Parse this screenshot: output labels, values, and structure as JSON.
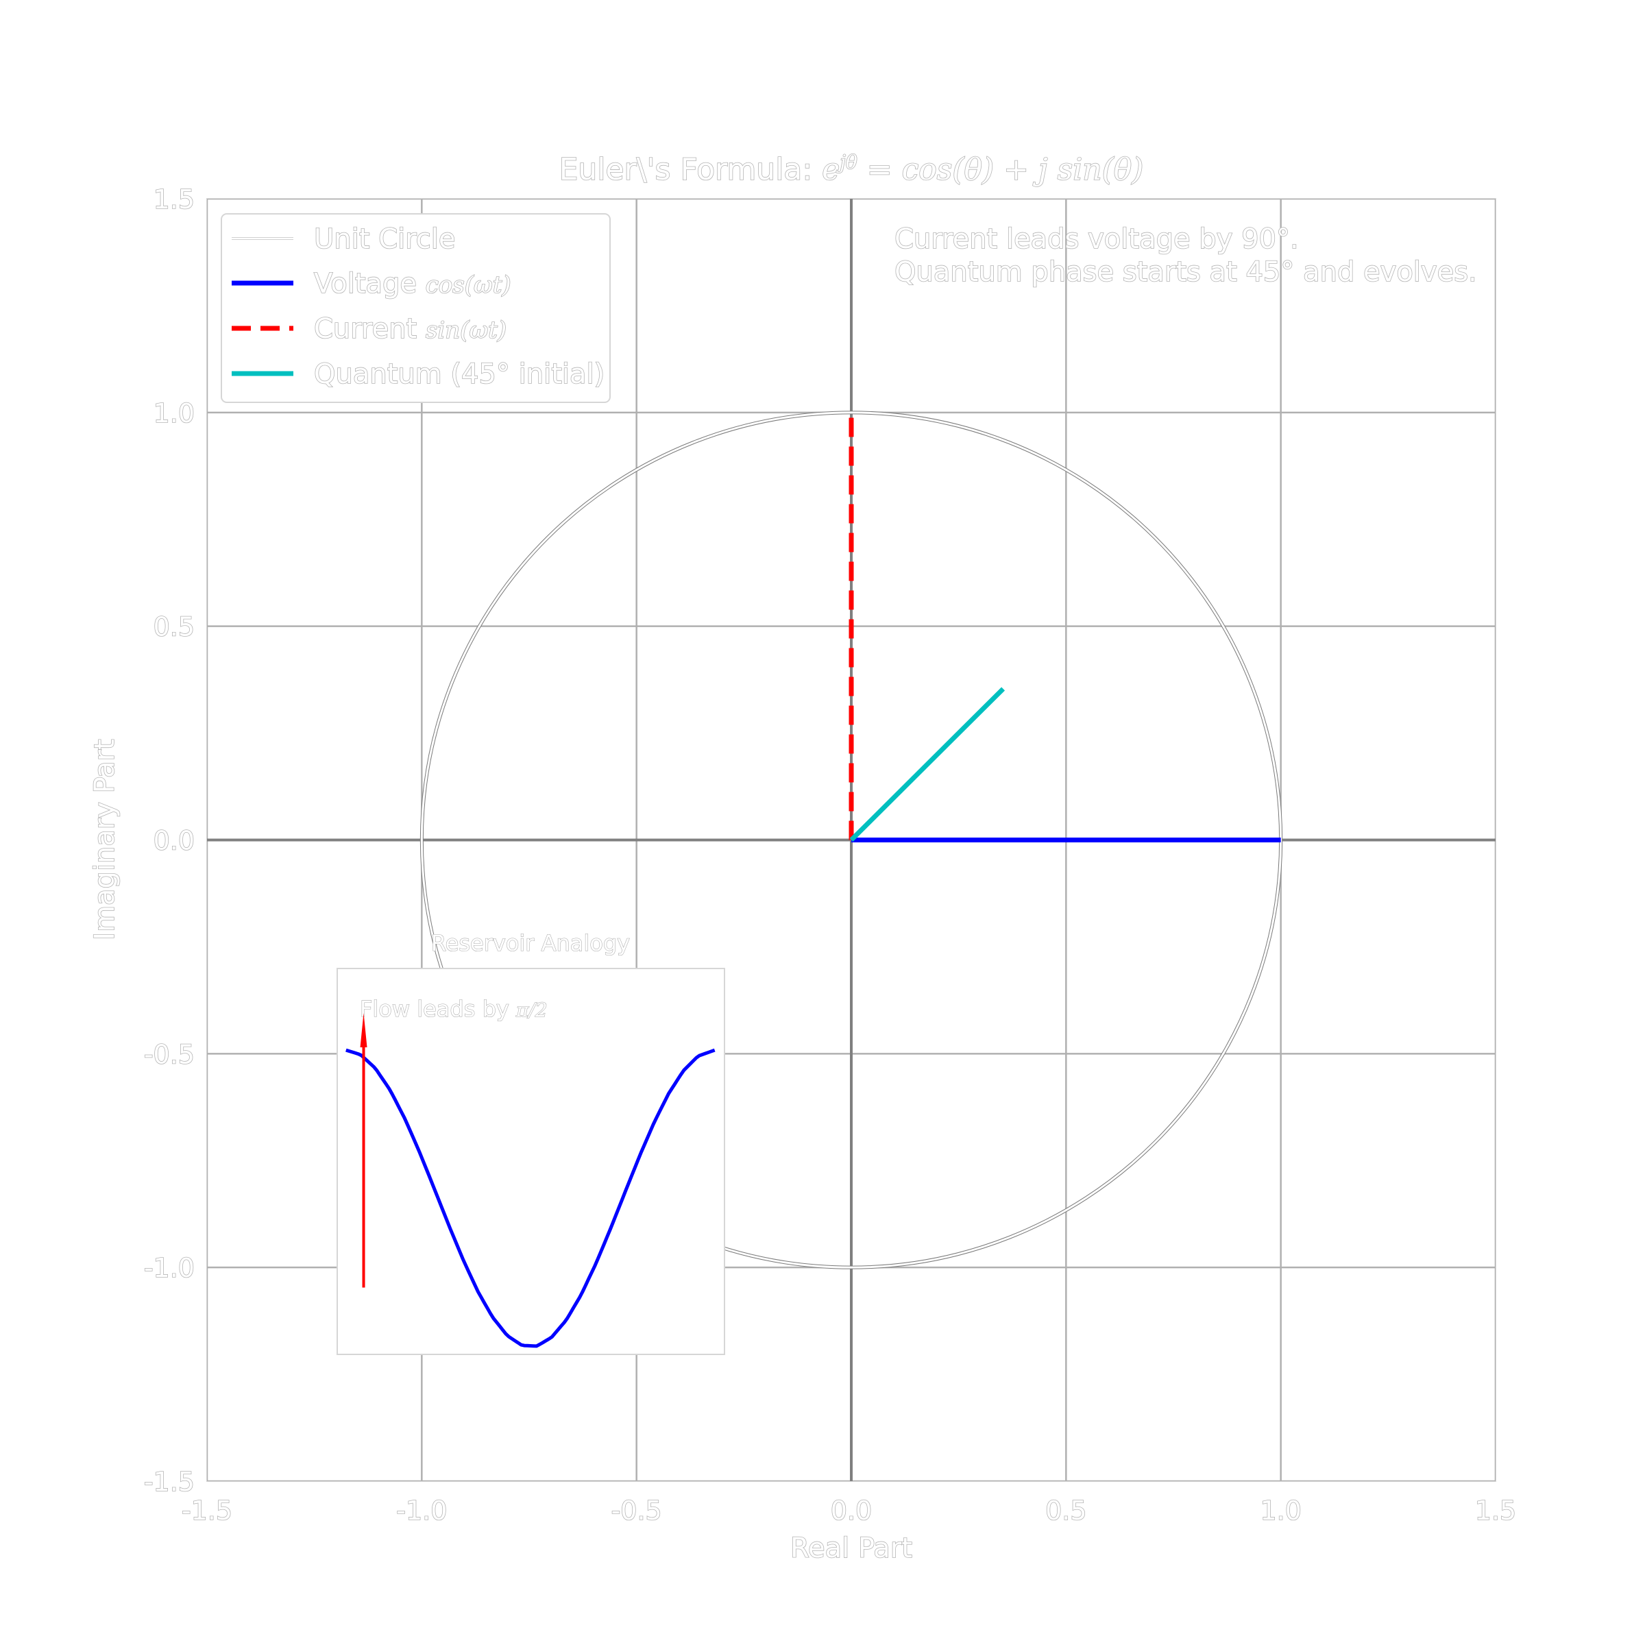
{
  "chart_data": {
    "type": "line",
    "title": "Euler\\'s Formula: e^{jθ} = cos(θ) + j sin(θ)",
    "title_parts": {
      "prefix": "Euler\\'s Formula: ",
      "math": "e",
      "sup": "jθ",
      "rest": " = cos(θ) + j sin(θ)"
    },
    "xlabel": "Real Part",
    "ylabel": "Imaginary Part",
    "xlim": [
      -1.5,
      1.5
    ],
    "ylim": [
      -1.5,
      1.5
    ],
    "xticks": [
      "-1.5",
      "-1.0",
      "-0.5",
      "0.0",
      "0.5",
      "1.0",
      "1.5"
    ],
    "yticks": [
      "1.5",
      "1.0",
      "0.5",
      "0.0",
      "-0.5",
      "-1.0",
      "-1.5"
    ],
    "grid": true,
    "legend_position": "top-left",
    "series": [
      {
        "name": "Unit Circle",
        "label_text": "Unit Circle",
        "shape": "circle",
        "radius": 1.0,
        "color": "#ffffff"
      },
      {
        "name": "Voltage cos(ωt)",
        "label_text": "Voltage ",
        "label_math": "cos(ωt)",
        "shape": "vector",
        "x": [
          0,
          1.0
        ],
        "y": [
          0,
          0.0
        ],
        "color": "#0000ff",
        "style": "solid"
      },
      {
        "name": "Current sin(ωt)",
        "label_text": "Current ",
        "label_math": "sin(ωt)",
        "shape": "vector",
        "x": [
          0,
          0.0
        ],
        "y": [
          0,
          1.0
        ],
        "color": "#ff0000",
        "style": "dashed"
      },
      {
        "name": "Quantum (45° initial)",
        "label_text": "Quantum (45° initial)",
        "shape": "vector",
        "x": [
          0,
          0.3536
        ],
        "y": [
          0,
          0.3536
        ],
        "color": "#00bfbf",
        "style": "solid"
      }
    ],
    "annotation": {
      "lines": [
        "Current leads voltage by 90°.",
        "Quantum phase starts at 45° and evolves."
      ]
    },
    "inset": {
      "title": "Reservoir Analogy",
      "note_prefix": "Flow leads by ",
      "note_math": "π/2",
      "curve": {
        "name": "cos",
        "color": "#0000ff",
        "x": [
          0,
          0.25,
          0.5,
          0.75,
          1.0,
          1.25,
          1.5,
          1.75,
          2.0,
          2.25,
          2.5,
          2.75,
          3.0,
          3.25,
          3.5,
          3.75,
          4.0,
          4.25,
          4.5,
          4.75,
          5.0,
          5.25,
          5.5,
          5.75,
          6.0,
          6.2832
        ],
        "y": [
          1.0,
          0.9689,
          0.8776,
          0.7317,
          0.5403,
          0.3153,
          0.0707,
          -0.1782,
          -0.4161,
          -0.6282,
          -0.8011,
          -0.9243,
          -0.99,
          -0.9941,
          -0.9365,
          -0.8206,
          -0.6536,
          -0.4461,
          -0.2108,
          0.0376,
          0.2837,
          0.5122,
          0.7087,
          0.8612,
          0.9602,
          1.0
        ]
      },
      "flow_arrow": {
        "x": 0.3,
        "y_from": -0.6,
        "y_to": 1.25,
        "color": "#ff0000"
      },
      "xlim": [
        -0.15,
        6.45
      ],
      "ylim": [
        -1.05,
        1.55
      ]
    }
  }
}
